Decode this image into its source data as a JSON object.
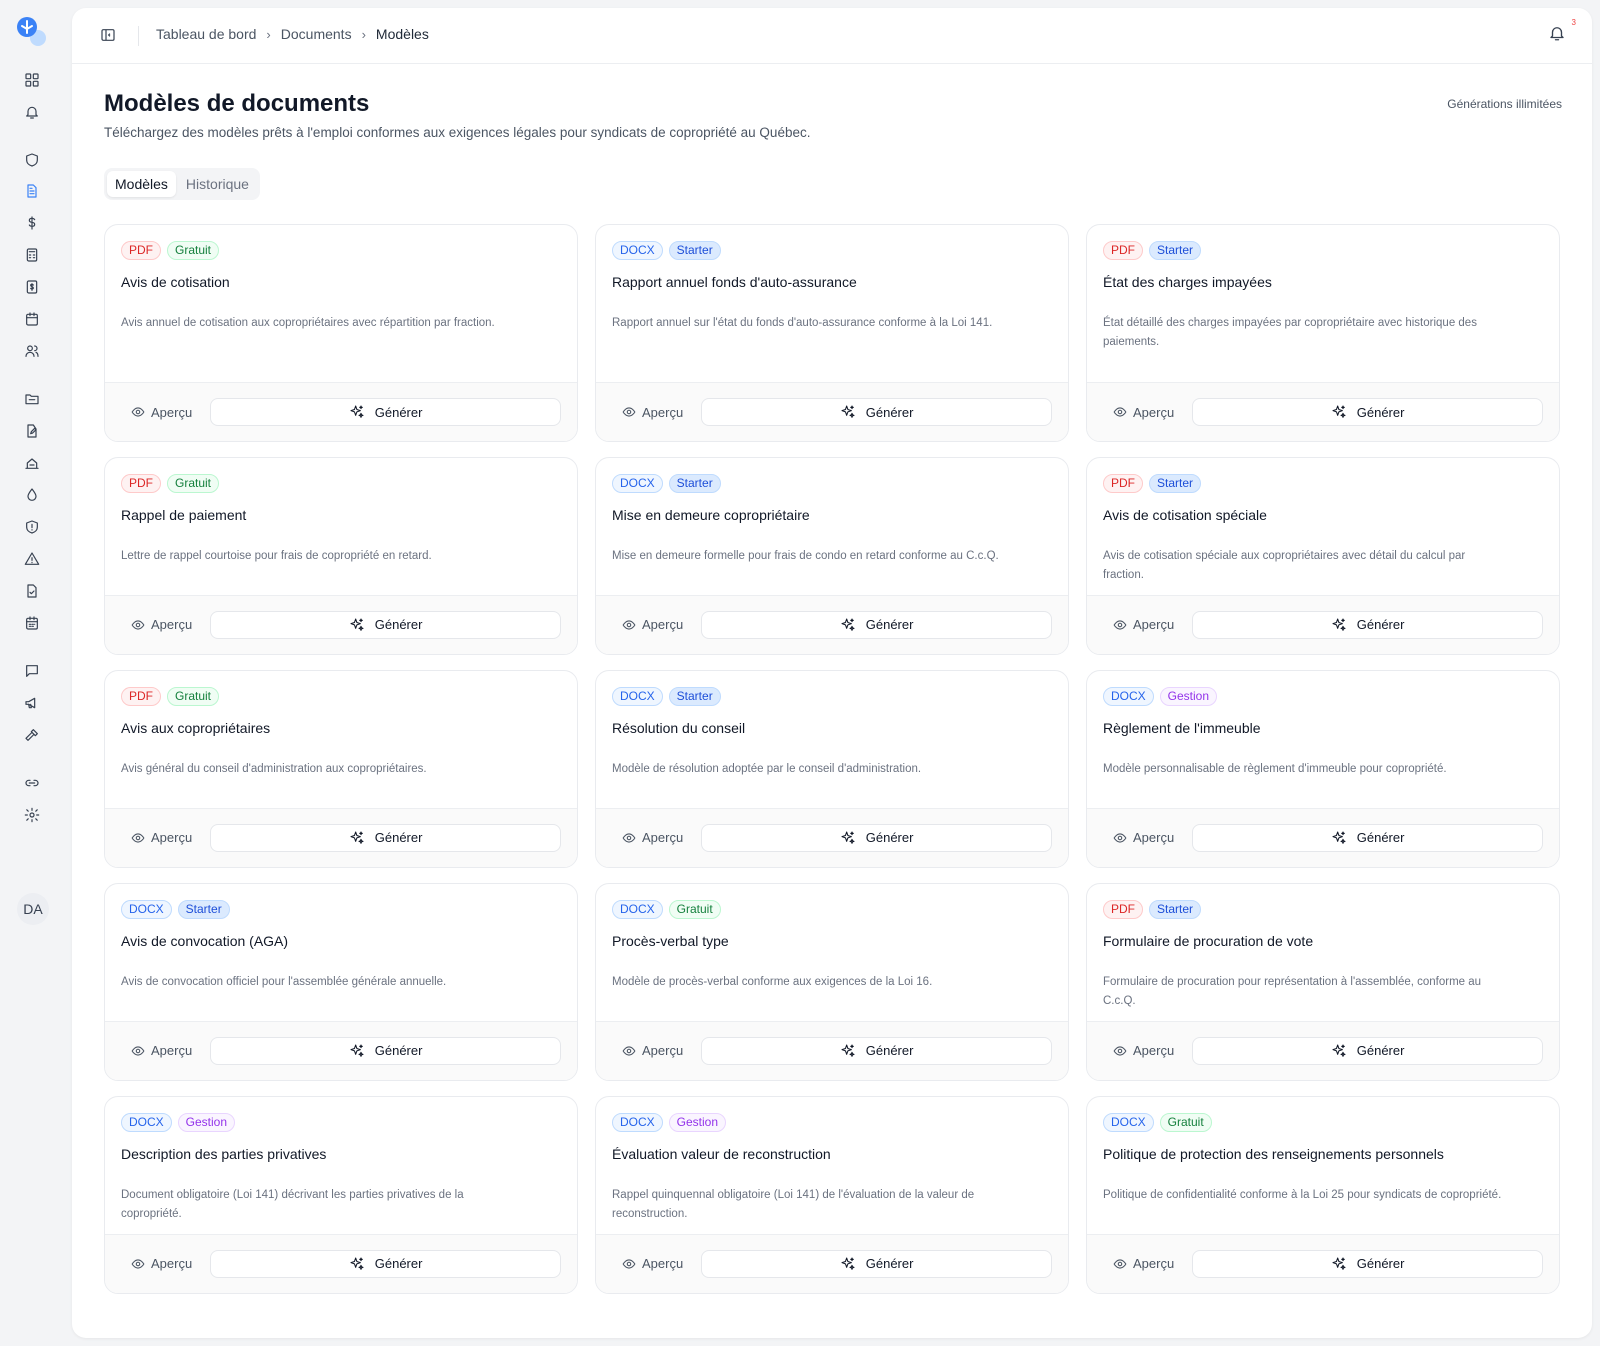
{
  "breadcrumb": [
    "Tableau de bord",
    "Documents",
    "Modèles"
  ],
  "notifications": {
    "count": "3"
  },
  "page": {
    "title": "Modèles de documents",
    "subtitle": "Téléchargez des modèles prêts à l'emploi conformes aux exigences légales pour syndicats de copropriété au Québec.",
    "generation_limit": "Générations illimitées"
  },
  "tabs": [
    {
      "label": "Modèles",
      "active": true
    },
    {
      "label": "Historique",
      "active": false
    }
  ],
  "sidebar": {
    "avatar_initials": "DA",
    "icons": [
      "dashboard-icon",
      "bell-icon",
      "shield-icon",
      "document-icon",
      "dollar-icon",
      "calculator-icon",
      "receipt-icon",
      "calendar-icon",
      "users-icon",
      "folder-icon",
      "edit-document-icon",
      "inspection-icon",
      "droplet-icon",
      "shield-alert-icon",
      "warning-icon",
      "document-check-icon",
      "calendar-grid-icon",
      "chat-icon",
      "megaphone-icon",
      "hammer-icon",
      "link-icon",
      "settings-icon"
    ]
  },
  "card_actions": {
    "preview_label": "Aperçu",
    "generate_label": "Générer"
  },
  "templates": [
    {
      "format": "PDF",
      "tier": "Gratuit",
      "title": "Avis de cotisation",
      "description": "Avis annuel de cotisation aux copropriétaires avec répartition par fraction."
    },
    {
      "format": "DOCX",
      "tier": "Starter",
      "title": "Rapport annuel fonds d'auto-assurance",
      "description": "Rapport annuel sur l'état du fonds d'auto-assurance conforme à la Loi 141."
    },
    {
      "format": "PDF",
      "tier": "Starter",
      "title": "État des charges impayées",
      "description": "État détaillé des charges impayées par copropriétaire avec historique des paiements."
    },
    {
      "format": "PDF",
      "tier": "Gratuit",
      "title": "Rappel de paiement",
      "description": "Lettre de rappel courtoise pour frais de copropriété en retard."
    },
    {
      "format": "DOCX",
      "tier": "Starter",
      "title": "Mise en demeure copropriétaire",
      "description": "Mise en demeure formelle pour frais de condo en retard conforme au C.c.Q."
    },
    {
      "format": "PDF",
      "tier": "Starter",
      "title": "Avis de cotisation spéciale",
      "description": "Avis de cotisation spéciale aux copropriétaires avec détail du calcul par fraction."
    },
    {
      "format": "PDF",
      "tier": "Gratuit",
      "title": "Avis aux copropriétaires",
      "description": "Avis général du conseil d'administration aux copropriétaires."
    },
    {
      "format": "DOCX",
      "tier": "Starter",
      "title": "Résolution du conseil",
      "description": "Modèle de résolution adoptée par le conseil d'administration."
    },
    {
      "format": "DOCX",
      "tier": "Gestion",
      "title": "Règlement de l'immeuble",
      "description": "Modèle personnalisable de règlement d'immeuble pour copropriété."
    },
    {
      "format": "DOCX",
      "tier": "Starter",
      "title": "Avis de convocation (AGA)",
      "description": "Avis de convocation officiel pour l'assemblée générale annuelle."
    },
    {
      "format": "DOCX",
      "tier": "Gratuit",
      "title": "Procès-verbal type",
      "description": "Modèle de procès-verbal conforme aux exigences de la Loi 16."
    },
    {
      "format": "PDF",
      "tier": "Starter",
      "title": "Formulaire de procuration de vote",
      "description": "Formulaire de procuration pour représentation à l'assemblée, conforme au C.c.Q."
    },
    {
      "format": "DOCX",
      "tier": "Gestion",
      "title": "Description des parties privatives",
      "description": "Document obligatoire (Loi 141) décrivant les parties privatives de la copropriété."
    },
    {
      "format": "DOCX",
      "tier": "Gestion",
      "title": "Évaluation valeur de reconstruction",
      "description": "Rappel quinquennal obligatoire (Loi 141) de l'évaluation de la valeur de reconstruction."
    },
    {
      "format": "DOCX",
      "tier": "Gratuit",
      "title": "Politique de protection des renseignements personnels",
      "description": "Politique de confidentialité conforme à la Loi 25 pour syndicats de copropriété."
    }
  ],
  "colors": {
    "accent": "#3b82f6",
    "pdf": "#dc2626",
    "docx": "#2563eb",
    "gratuit": "#15803d",
    "starter": "#1d4ed8",
    "gestion": "#9333ea"
  }
}
